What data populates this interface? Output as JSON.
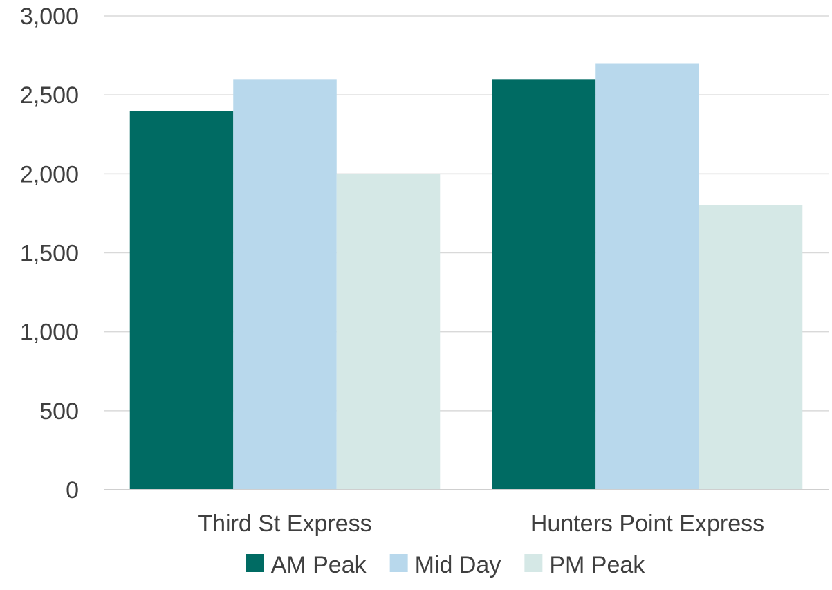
{
  "chart_data": {
    "type": "bar",
    "categories": [
      "Third St Express",
      "Hunters Point Express"
    ],
    "series": [
      {
        "name": "AM Peak",
        "values": [
          2400,
          2600
        ],
        "color": "#006b63"
      },
      {
        "name": "Mid Day",
        "values": [
          2600,
          2700
        ],
        "color": "#b8d8ec"
      },
      {
        "name": "PM Peak",
        "values": [
          2000,
          1800
        ],
        "color": "#d5e8e6"
      }
    ],
    "ylim": [
      0,
      3000
    ],
    "yticks": [
      0,
      500,
      1000,
      1500,
      2000,
      2500,
      3000
    ],
    "ytick_labels": [
      "0",
      "500",
      "1,000",
      "1,500",
      "2,000",
      "2,500",
      "3,000"
    ],
    "grid": true,
    "legend": "bottom",
    "title": "",
    "xlabel": "",
    "ylabel": ""
  }
}
